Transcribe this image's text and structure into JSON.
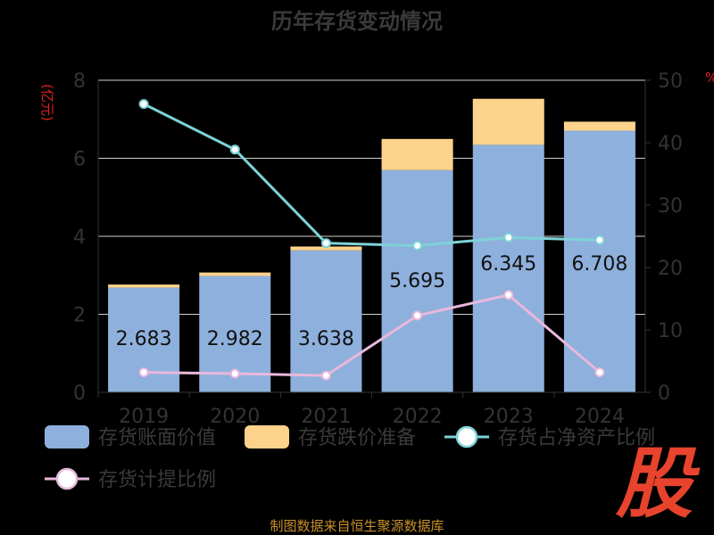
{
  "chart_data": {
    "type": "bar",
    "title": "历年存货变动情况",
    "categories": [
      "2019",
      "2020",
      "2021",
      "2022",
      "2023",
      "2024"
    ],
    "y_left": {
      "unit": "(亿元)",
      "ticks": [
        "0",
        "2",
        "4",
        "6",
        "8"
      ],
      "ylim": [
        0,
        8
      ]
    },
    "y_right": {
      "unit": "%",
      "ticks": [
        "0",
        "10",
        "20",
        "30",
        "40",
        "50"
      ],
      "ylim": [
        0,
        50
      ]
    },
    "series": [
      {
        "name": "存货账面价值",
        "kind": "bar",
        "axis": "left",
        "color": "#8eb0dc",
        "values": [
          2.683,
          2.982,
          3.638,
          5.695,
          6.345,
          6.708
        ],
        "labels": [
          "2.683",
          "2.982",
          "3.638",
          "5.695",
          "6.345",
          "6.708"
        ]
      },
      {
        "name": "存货跌价准备",
        "kind": "bar-stack",
        "axis": "left",
        "color": "#fdd38c",
        "values": [
          0.08,
          0.09,
          0.1,
          0.8,
          1.18,
          0.23
        ]
      },
      {
        "name": "存货占净资产比例",
        "kind": "line",
        "axis": "right",
        "color": "#7dd3d8",
        "values": [
          46.2,
          38.9,
          23.9,
          23.5,
          24.8,
          24.4
        ]
      },
      {
        "name": "存货计提比例",
        "kind": "line",
        "axis": "right",
        "color": "#e8b8dc",
        "values": [
          3.2,
          3.0,
          2.7,
          12.3,
          15.6,
          3.2
        ]
      }
    ],
    "legend_position": "bottom",
    "grid": true
  },
  "footer": {
    "source": "制图数据来自恒生聚源数据库"
  },
  "logo_text": "股"
}
